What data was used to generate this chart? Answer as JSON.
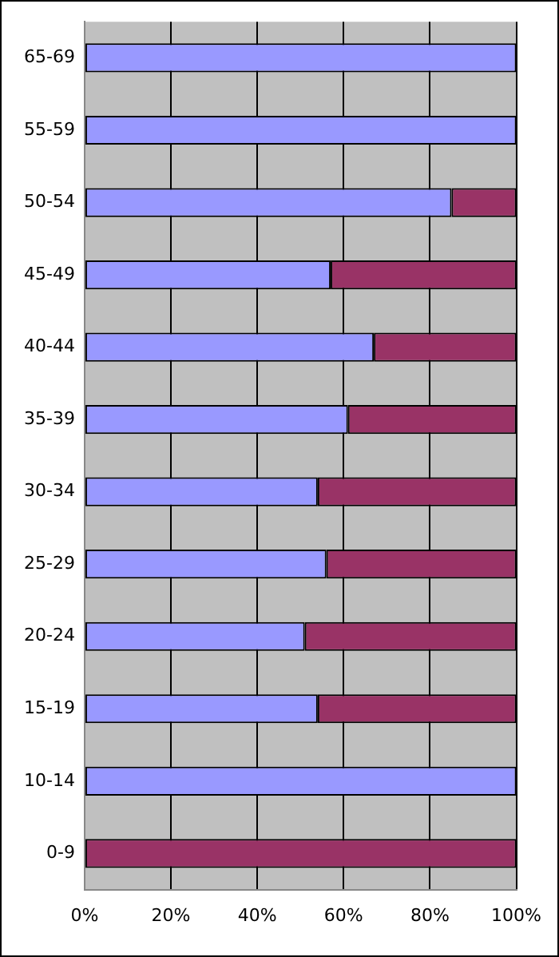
{
  "chart_data": {
    "type": "bar",
    "orientation": "horizontal",
    "stacked": true,
    "categories": [
      "65-69",
      "55-59",
      "50-54",
      "45-49",
      "40-44",
      "35-39",
      "30-34",
      "25-29",
      "20-24",
      "15-19",
      "10-14",
      "0-9"
    ],
    "series": [
      {
        "color": "#9999ff",
        "values": [
          100,
          100,
          85,
          57,
          67,
          61,
          54,
          56,
          51,
          54,
          100,
          0
        ]
      },
      {
        "color": "#993366",
        "values": [
          0,
          0,
          15,
          43,
          33,
          39,
          46,
          44,
          49,
          46,
          0,
          100
        ]
      }
    ],
    "xlim": [
      0,
      100
    ],
    "xticks": [
      {
        "value": 0,
        "label": "0%"
      },
      {
        "value": 20,
        "label": "20%"
      },
      {
        "value": 40,
        "label": "40%"
      },
      {
        "value": 60,
        "label": "60%"
      },
      {
        "value": 80,
        "label": "80%"
      },
      {
        "value": 100,
        "label": "100%"
      }
    ],
    "grid": "x",
    "legend": false
  }
}
